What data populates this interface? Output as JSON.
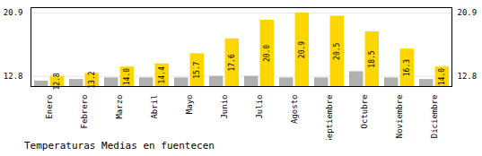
{
  "chart_data": {
    "type": "bar",
    "title": "Temperaturas Medias en fuentecen",
    "categories": [
      "Enero",
      "Febrero",
      "Marzo",
      "Abril",
      "Mayo",
      "Junio",
      "Julio",
      "Agosto",
      "Septiembre",
      "Octubre",
      "Noviembre",
      "Diciembre"
    ],
    "series": [
      {
        "color": "#B0B0B0",
        "values": [
          12.2,
          12.4,
          12.6,
          12.6,
          12.6,
          12.8,
          12.8,
          12.6,
          12.6,
          13.4,
          12.6,
          12.4
        ]
      },
      {
        "color": "#FFD700",
        "values": [
          12.8,
          13.2,
          14.0,
          14.4,
          15.7,
          17.6,
          20.0,
          20.9,
          20.5,
          18.5,
          16.3,
          14.0
        ],
        "data_labels": true,
        "value_labels": [
          "12.8",
          "13.2",
          "14.0",
          "14.4",
          "15.7",
          "17.6",
          "20.0",
          "20.9",
          "20.5",
          "18.5",
          "16.3",
          "14.0"
        ]
      }
    ],
    "ylim": [
      11.5,
      21.6
    ],
    "yticks": [
      12.8,
      20.9
    ],
    "y2lim": [
      11.5,
      21.6
    ],
    "y2ticks": [
      12.8,
      20.9
    ],
    "grid": true
  }
}
